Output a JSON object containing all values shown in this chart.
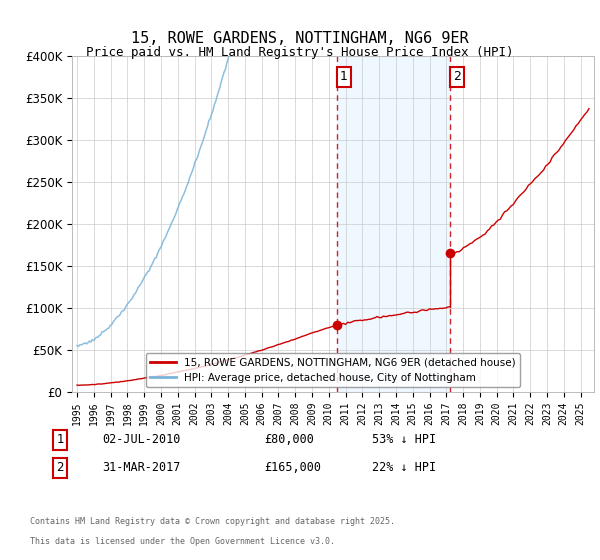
{
  "title": "15, ROWE GARDENS, NOTTINGHAM, NG6 9ER",
  "subtitle": "Price paid vs. HM Land Registry's House Price Index (HPI)",
  "ylabel_ticks": [
    "£0",
    "£50K",
    "£100K",
    "£150K",
    "£200K",
    "£250K",
    "£300K",
    "£350K",
    "£400K"
  ],
  "ylim": [
    0,
    400000
  ],
  "xlim_start": 1994.7,
  "xlim_end": 2025.8,
  "hpi_color": "#7ab3d8",
  "price_color": "#cc0000",
  "sale1_year": 2010.5,
  "sale1_price": 80000,
  "sale2_year": 2017.25,
  "sale2_price": 165000,
  "vline_color": "#cc0000",
  "shade_color": "#ddeeff",
  "shade_alpha": 0.45,
  "legend1": "15, ROWE GARDENS, NOTTINGHAM, NG6 9ER (detached house)",
  "legend2": "HPI: Average price, detached house, City of Nottingham",
  "ann1_num": "1",
  "ann1_date": "02-JUL-2010",
  "ann1_price": "£80,000",
  "ann1_hpi": "53% ↓ HPI",
  "ann2_num": "2",
  "ann2_date": "31-MAR-2017",
  "ann2_price": "£165,000",
  "ann2_hpi": "22% ↓ HPI",
  "footer_line1": "Contains HM Land Registry data © Crown copyright and database right 2025.",
  "footer_line2": "This data is licensed under the Open Government Licence v3.0.",
  "bg": "#ffffff"
}
